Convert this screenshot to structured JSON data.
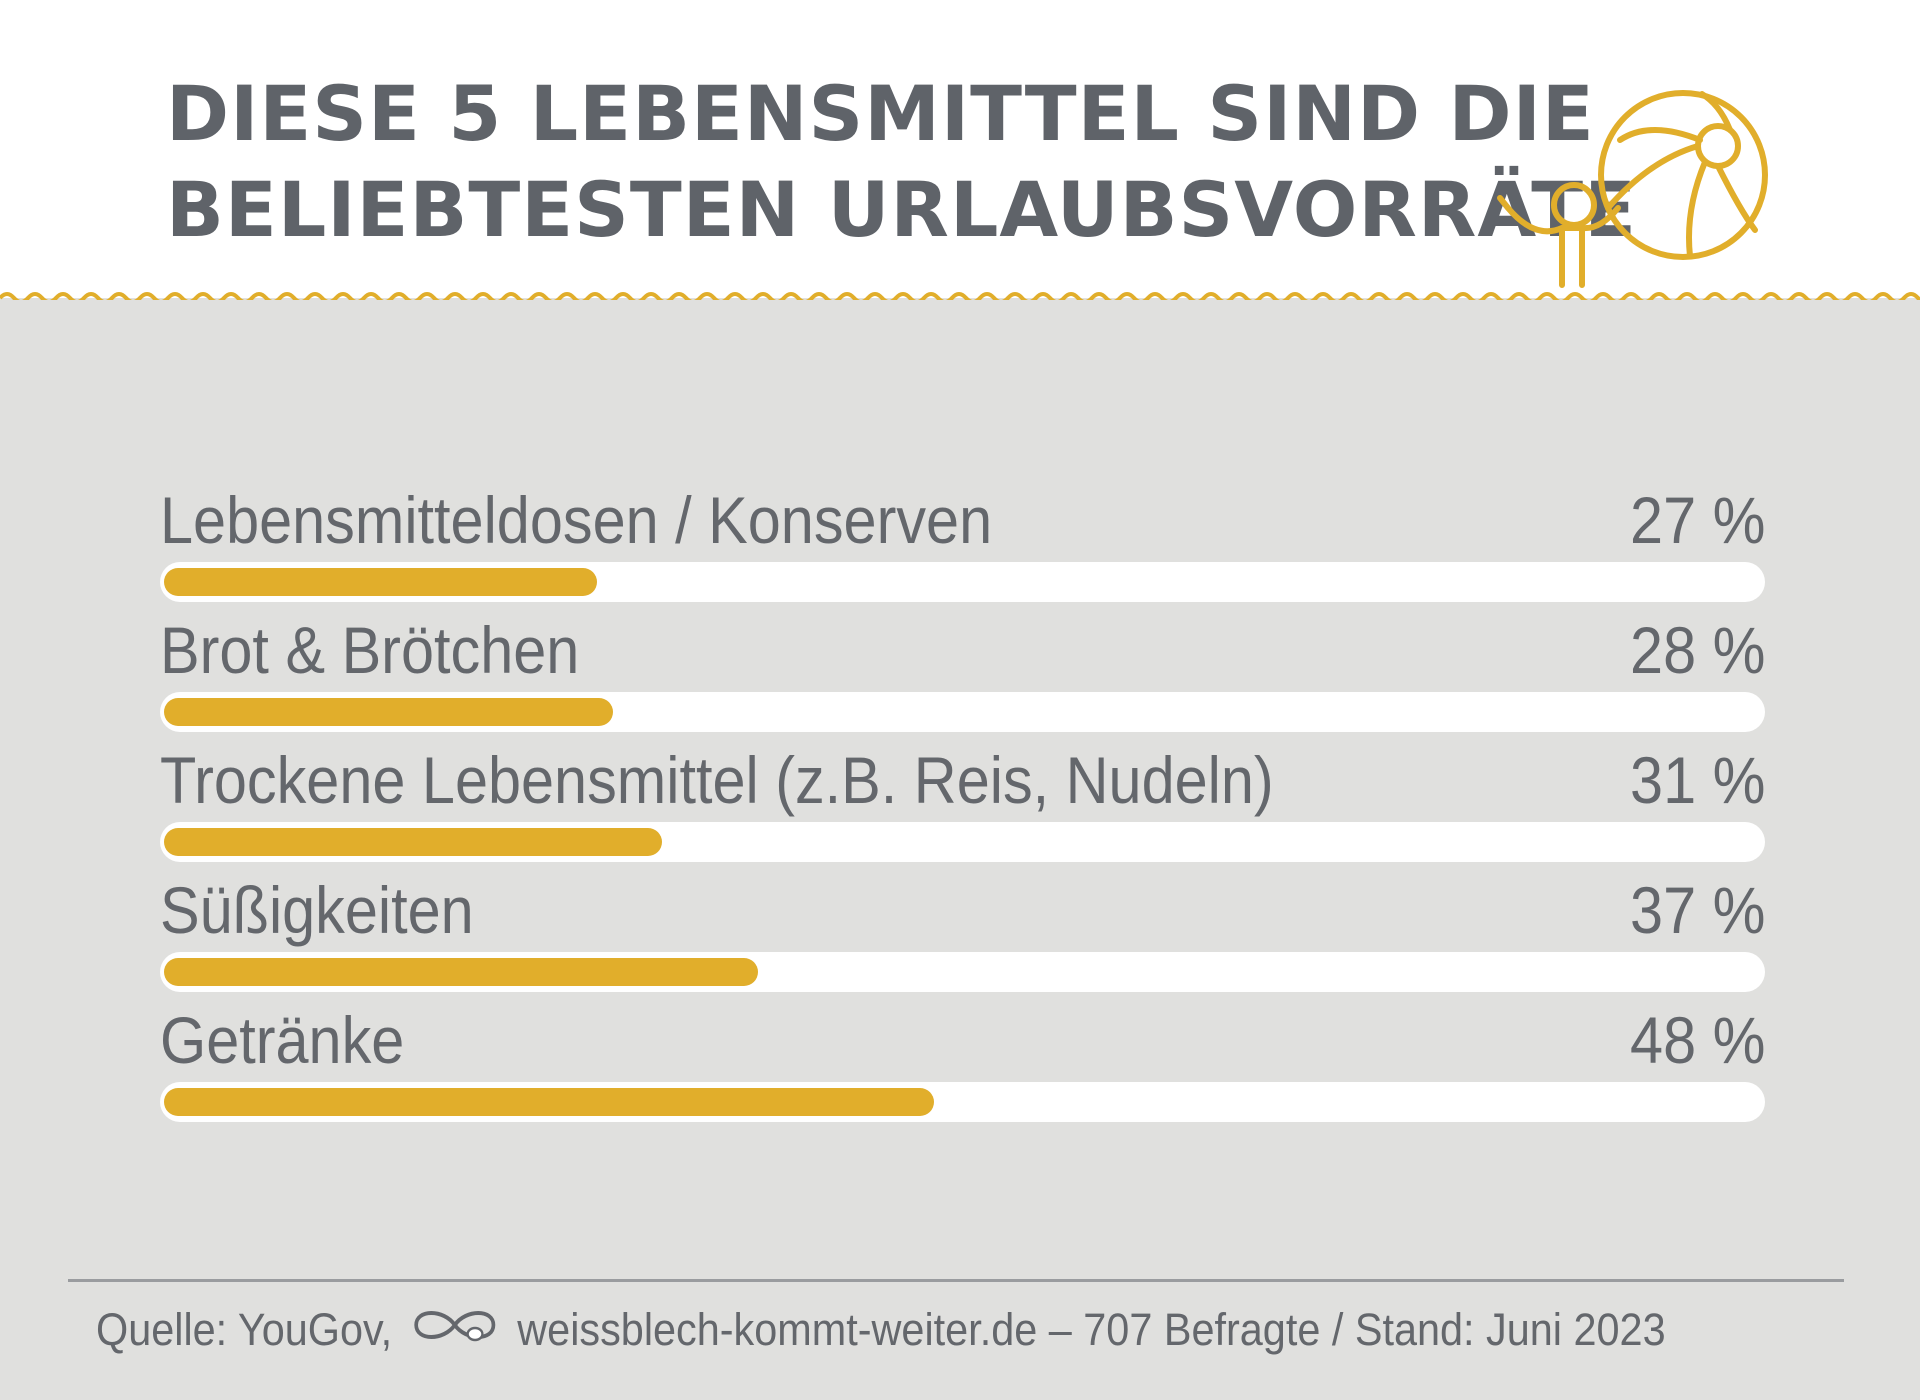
{
  "header": {
    "title": "DIESE 5 LEBENSMITTEL SIND DIE\nBELIEBTESTEN URLAUBSVORRÄTE",
    "illustration_icon": "person-with-beach-ball-icon"
  },
  "colors": {
    "accent": "#e1ae2b",
    "text": "#64676c",
    "title": "#5f6369",
    "panel": "#e0e0de",
    "track": "#ffffff"
  },
  "chart_data": {
    "type": "bar",
    "orientation": "horizontal",
    "title": "DIESE 5 LEBENSMITTEL SIND DIE BELIEBTESTEN URLAUBSVORRÄTE",
    "categories": [
      "Lebensmitteldosen / Konserven",
      "Brot & Brötchen",
      "Trockene Lebensmittel (z.B. Reis, Nudeln)",
      "Süßigkeiten",
      "Getränke"
    ],
    "values": [
      27,
      28,
      31,
      37,
      48
    ],
    "value_labels": [
      "27 %",
      "28 %",
      "31 %",
      "37 %",
      "48 %"
    ],
    "unit": "%",
    "xlim": [
      0,
      100
    ],
    "grid": false,
    "legend": "none"
  },
  "footer": {
    "source_prefix": "Quelle: YouGov,",
    "logo_icon": "infinity-can-logo-icon",
    "source_suffix": "weissblech-kommt-weiter.de – 707 Befragte / Stand: Juni 2023"
  }
}
